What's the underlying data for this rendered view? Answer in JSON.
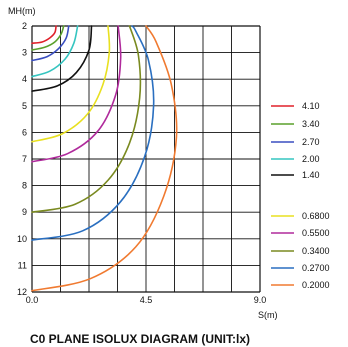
{
  "chart_data": {
    "type": "line",
    "title": "C0 PLANE ISOLUX DIAGRAM (UNIT:lx)",
    "xlabel": "S(m)",
    "ylabel": "MH(m)",
    "xlim": [
      0,
      9
    ],
    "ylim": [
      2,
      12
    ],
    "y_inverted": true,
    "grid": true,
    "x_tick_labels": [
      "0.0",
      "4.5",
      "9.0"
    ],
    "x_tick_values": [
      0,
      4.5,
      9
    ],
    "y_tick_labels": [
      "2",
      "3",
      "4",
      "5",
      "6",
      "7",
      "8",
      "9",
      "10",
      "11",
      "12"
    ],
    "legend_placement": "right",
    "series": [
      {
        "name": "4.10",
        "color": "#e0202a",
        "points": [
          [
            0,
            2.65
          ],
          [
            0.4,
            2.6
          ],
          [
            0.7,
            2.45
          ],
          [
            0.9,
            2.25
          ],
          [
            0.95,
            2.0
          ]
        ]
      },
      {
        "name": "3.40",
        "color": "#5aa02c",
        "points": [
          [
            0,
            2.9
          ],
          [
            0.5,
            2.8
          ],
          [
            0.9,
            2.6
          ],
          [
            1.15,
            2.3
          ],
          [
            1.25,
            2.0
          ]
        ]
      },
      {
        "name": "2.70",
        "color": "#3a4ec0",
        "points": [
          [
            0,
            3.3
          ],
          [
            0.6,
            3.15
          ],
          [
            1.05,
            2.85
          ],
          [
            1.35,
            2.45
          ],
          [
            1.45,
            2.0
          ]
        ]
      },
      {
        "name": "2.00",
        "color": "#35c5c0",
        "points": [
          [
            0,
            3.9
          ],
          [
            0.7,
            3.7
          ],
          [
            1.3,
            3.25
          ],
          [
            1.65,
            2.65
          ],
          [
            1.8,
            2.0
          ]
        ]
      },
      {
        "name": "1.40",
        "color": "#111111",
        "points": [
          [
            0,
            4.45
          ],
          [
            1.0,
            4.25
          ],
          [
            1.75,
            3.75
          ],
          [
            2.25,
            2.9
          ],
          [
            2.35,
            2.0
          ]
        ]
      },
      {
        "name": "0.6800",
        "color": "#e8e020",
        "points": [
          [
            0,
            6.35
          ],
          [
            1.2,
            6.05
          ],
          [
            2.2,
            5.3
          ],
          [
            2.8,
            4.2
          ],
          [
            3.05,
            3.0
          ],
          [
            3.0,
            2.0
          ]
        ]
      },
      {
        "name": "0.5500",
        "color": "#b02a9c",
        "points": [
          [
            0,
            7.1
          ],
          [
            1.4,
            6.8
          ],
          [
            2.6,
            5.95
          ],
          [
            3.3,
            4.6
          ],
          [
            3.5,
            3.2
          ],
          [
            3.4,
            2.0
          ]
        ]
      },
      {
        "name": "0.3400",
        "color": "#7a8a20",
        "points": [
          [
            0,
            9.0
          ],
          [
            1.7,
            8.7
          ],
          [
            3.0,
            7.8
          ],
          [
            3.85,
            6.4
          ],
          [
            4.25,
            4.7
          ],
          [
            4.2,
            3.1
          ],
          [
            3.85,
            2.0
          ]
        ]
      },
      {
        "name": "0.2700",
        "color": "#2a6fc0",
        "points": [
          [
            0,
            10.05
          ],
          [
            2.0,
            9.7
          ],
          [
            3.5,
            8.6
          ],
          [
            4.45,
            6.9
          ],
          [
            4.8,
            5.0
          ],
          [
            4.6,
            3.3
          ],
          [
            4.1,
            2.2
          ],
          [
            3.95,
            2.0
          ]
        ]
      },
      {
        "name": "0.2000",
        "color": "#f07a30",
        "points": [
          [
            0,
            11.95
          ],
          [
            2.3,
            11.5
          ],
          [
            4.1,
            10.3
          ],
          [
            5.2,
            8.4
          ],
          [
            5.7,
            6.2
          ],
          [
            5.5,
            4.2
          ],
          [
            4.9,
            2.6
          ],
          [
            4.5,
            2.0
          ]
        ]
      }
    ]
  }
}
